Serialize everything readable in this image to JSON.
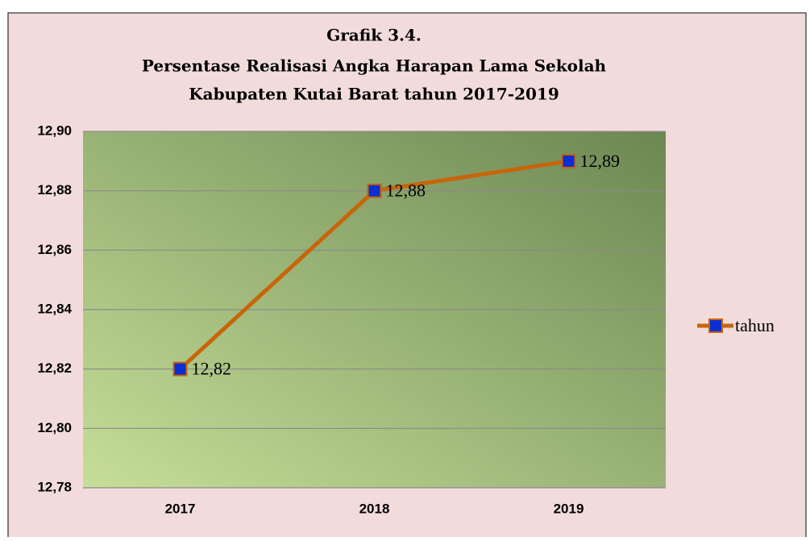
{
  "chart_data": {
    "type": "line",
    "title": [
      "Grafik 3.4.",
      "Persentase Realisasi Angka Harapan Lama Sekolah",
      "Kabupaten Kutai Barat tahun 2017-2019"
    ],
    "categories": [
      "2017",
      "2018",
      "2019"
    ],
    "series": [
      {
        "name": "tahun",
        "color": "#c8650a",
        "marker_color": "#0a2fd0",
        "values": [
          12.82,
          12.88,
          12.89
        ],
        "value_labels": [
          "12,82",
          "12,88",
          "12,89"
        ]
      }
    ],
    "ylim": [
      12.78,
      12.9
    ],
    "yticks": [
      {
        "value": 12.78,
        "label": "12,78"
      },
      {
        "value": 12.8,
        "label": "12,80"
      },
      {
        "value": 12.82,
        "label": "12,82"
      },
      {
        "value": 12.84,
        "label": "12,84"
      },
      {
        "value": 12.86,
        "label": "12,86"
      },
      {
        "value": 12.88,
        "label": "12,88"
      },
      {
        "value": 12.9,
        "label": "12,90"
      }
    ],
    "grid": true,
    "legend": "right"
  }
}
